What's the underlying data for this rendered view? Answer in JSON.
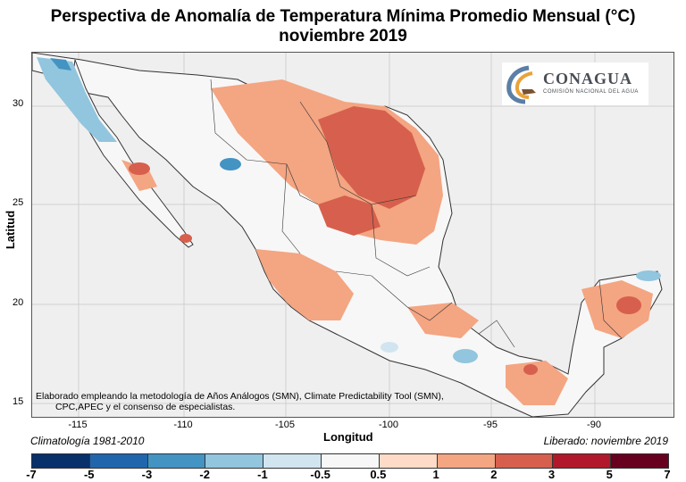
{
  "title": {
    "line1": "Perspectiva de Anomalía de Temperatura Mínima Promedio Mensual (°C)",
    "line2": "noviembre 2019"
  },
  "axes": {
    "ylabel": "Latitud",
    "xlabel": "Longitud",
    "yticks": [
      "30",
      "25",
      "20",
      "15"
    ],
    "xticks": [
      "-115",
      "-110",
      "-105",
      "-100",
      "-95",
      "-90"
    ]
  },
  "note": {
    "line1": "Elaborado empleando la metodología de Años Análogos (SMN), Climate Predictability Tool (SMN),",
    "line2": "CPC,APEC y el consenso de especialistas."
  },
  "footer": {
    "climatology": "Climatología 1981-2010",
    "released": "Liberado: noviembre 2019"
  },
  "logo": {
    "name": "CONAGUA",
    "subtitle": "COMISIÓN NACIONAL DEL AGUA"
  },
  "colorbar": {
    "ticks": [
      "-7",
      "-5",
      "-3",
      "-2",
      "-1",
      "-0.5",
      "0.5",
      "1",
      "2",
      "3",
      "5",
      "7"
    ],
    "colors": [
      "#08306b",
      "#2166ac",
      "#4393c3",
      "#92c5de",
      "#d1e5f0",
      "#f7f7f7",
      "#fddbc7",
      "#f4a582",
      "#d6604d",
      "#b2182b",
      "#67001f"
    ]
  }
}
